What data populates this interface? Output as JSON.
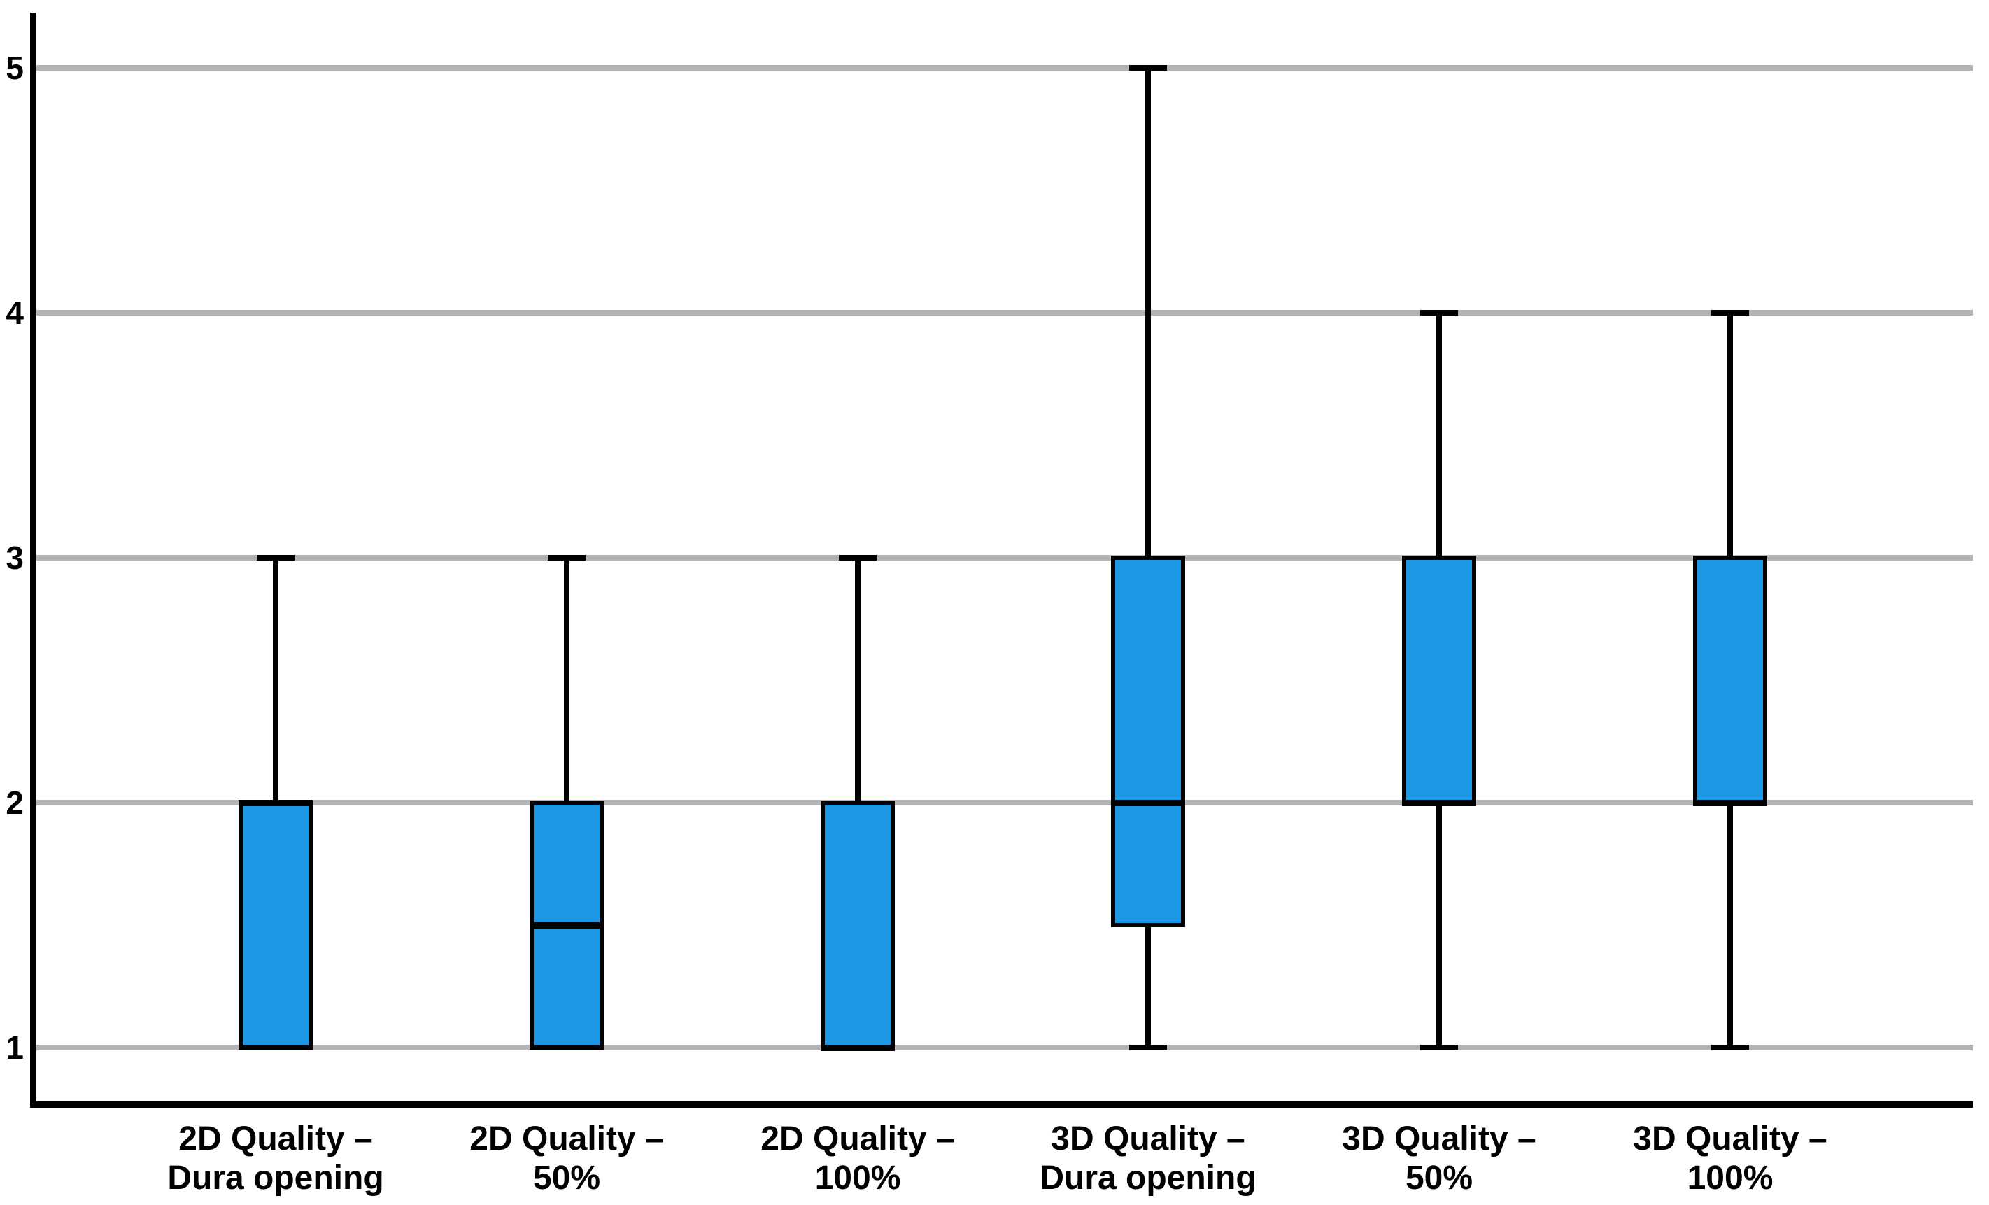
{
  "figure": {
    "background_color": "#ffffff",
    "axis_color": "#000000",
    "text_color": "#000000"
  },
  "chart_data": {
    "type": "box",
    "title": "",
    "xlabel": "",
    "ylabel": "",
    "orientation": "vertical",
    "grid": "horizontal-gridlines-on",
    "legend": "none",
    "y_ticks": [
      1,
      2,
      3,
      4,
      5
    ],
    "ylim": [
      0.77,
      5.23
    ],
    "gridline_color": "#b3b3b3",
    "box_fill_color": "#1e97e4",
    "box_border_color": "#000000",
    "median_color": "#000000",
    "whisker_color": "#000000",
    "categories": [
      {
        "line1": "2D Quality –",
        "line2": "Dura opening"
      },
      {
        "line1": "2D Quality –",
        "line2": "50%"
      },
      {
        "line1": "2D Quality –",
        "line2": "100%"
      },
      {
        "line1": "3D Quality –",
        "line2": "Dura opening"
      },
      {
        "line1": "3D Quality –",
        "line2": "50%"
      },
      {
        "line1": "3D Quality –",
        "line2": "100%"
      }
    ],
    "series": [
      {
        "label": "2D Quality – Dura opening",
        "whisker_low": 1,
        "q1": 1,
        "median": 2,
        "q3": 2,
        "whisker_high": 3
      },
      {
        "label": "2D Quality – 50%",
        "whisker_low": 1,
        "q1": 1,
        "median": 1.5,
        "q3": 2,
        "whisker_high": 3
      },
      {
        "label": "2D Quality – 100%",
        "whisker_low": 1,
        "q1": 1,
        "median": 1,
        "q3": 2,
        "whisker_high": 3
      },
      {
        "label": "3D Quality – Dura opening",
        "whisker_low": 1,
        "q1": 1.5,
        "median": 2,
        "q3": 3,
        "whisker_high": 5
      },
      {
        "label": "3D Quality – 50%",
        "whisker_low": 1,
        "q1": 2,
        "median": 2,
        "q3": 3,
        "whisker_high": 4
      },
      {
        "label": "3D Quality – 100%",
        "whisker_low": 1,
        "q1": 2,
        "median": 2,
        "q3": 3,
        "whisker_high": 4
      }
    ]
  }
}
